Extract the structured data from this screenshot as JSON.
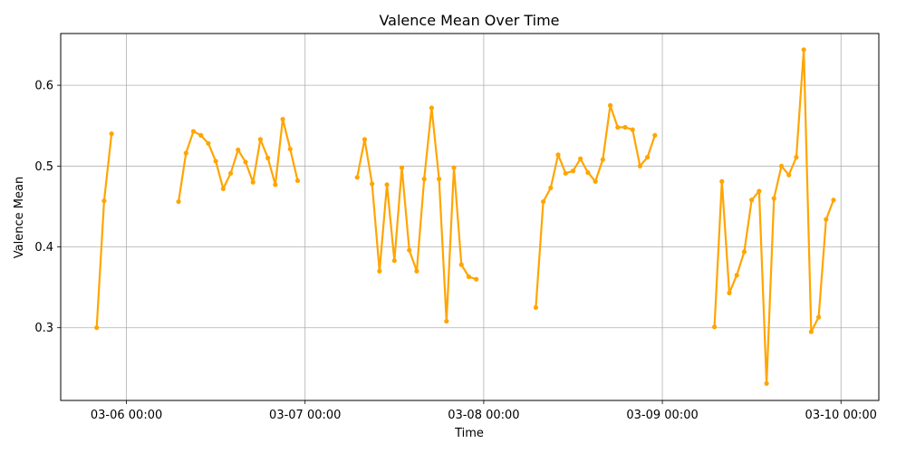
{
  "chart_data": {
    "type": "line",
    "title": "Valence Mean Over Time",
    "xlabel": "Time",
    "ylabel": "Valence Mean",
    "x_ticks": [
      "03-06 00:00",
      "03-07 00:00",
      "03-08 00:00",
      "03-09 00:00",
      "03-10 00:00"
    ],
    "y_ticks": [
      "0.3",
      "0.4",
      "0.5",
      "0.6"
    ],
    "ylim": [
      0.21,
      0.664
    ],
    "xlim": [
      "03-05 15:10",
      "03-10 05:05"
    ],
    "grid": true,
    "line_color": "#FFA500",
    "segments": [
      [
        {
          "t": "03-05 20:00",
          "v": 0.3
        },
        {
          "t": "03-05 21:00",
          "v": 0.457
        },
        {
          "t": "03-05 22:00",
          "v": 0.54
        }
      ],
      [
        {
          "t": "03-06 07:00",
          "v": 0.456
        },
        {
          "t": "03-06 08:00",
          "v": 0.516
        },
        {
          "t": "03-06 09:00",
          "v": 0.543
        },
        {
          "t": "03-06 10:00",
          "v": 0.538
        },
        {
          "t": "03-06 11:00",
          "v": 0.528
        },
        {
          "t": "03-06 12:00",
          "v": 0.506
        },
        {
          "t": "03-06 13:00",
          "v": 0.472
        },
        {
          "t": "03-06 14:00",
          "v": 0.491
        },
        {
          "t": "03-06 15:00",
          "v": 0.52
        },
        {
          "t": "03-06 16:00",
          "v": 0.505
        },
        {
          "t": "03-06 17:00",
          "v": 0.48
        },
        {
          "t": "03-06 18:00",
          "v": 0.533
        },
        {
          "t": "03-06 19:00",
          "v": 0.51
        },
        {
          "t": "03-06 20:00",
          "v": 0.477
        },
        {
          "t": "03-06 21:00",
          "v": 0.558
        },
        {
          "t": "03-06 22:00",
          "v": 0.521
        },
        {
          "t": "03-06 23:00",
          "v": 0.482
        }
      ],
      [
        {
          "t": "03-07 07:00",
          "v": 0.486
        },
        {
          "t": "03-07 08:00",
          "v": 0.533
        },
        {
          "t": "03-07 09:00",
          "v": 0.478
        },
        {
          "t": "03-07 10:00",
          "v": 0.37
        },
        {
          "t": "03-07 11:00",
          "v": 0.477
        },
        {
          "t": "03-07 12:00",
          "v": 0.383
        },
        {
          "t": "03-07 13:00",
          "v": 0.498
        },
        {
          "t": "03-07 14:00",
          "v": 0.396
        },
        {
          "t": "03-07 15:00",
          "v": 0.37
        },
        {
          "t": "03-07 16:00",
          "v": 0.484
        },
        {
          "t": "03-07 17:00",
          "v": 0.572
        },
        {
          "t": "03-07 18:00",
          "v": 0.484
        },
        {
          "t": "03-07 19:00",
          "v": 0.308
        },
        {
          "t": "03-07 20:00",
          "v": 0.498
        },
        {
          "t": "03-07 21:00",
          "v": 0.378
        },
        {
          "t": "03-07 22:00",
          "v": 0.363
        },
        {
          "t": "03-07 23:00",
          "v": 0.36
        }
      ],
      [
        {
          "t": "03-08 07:00",
          "v": 0.325
        },
        {
          "t": "03-08 08:00",
          "v": 0.456
        },
        {
          "t": "03-08 09:00",
          "v": 0.473
        },
        {
          "t": "03-08 10:00",
          "v": 0.514
        },
        {
          "t": "03-08 11:00",
          "v": 0.491
        },
        {
          "t": "03-08 12:00",
          "v": 0.494
        },
        {
          "t": "03-08 13:00",
          "v": 0.509
        },
        {
          "t": "03-08 14:00",
          "v": 0.492
        },
        {
          "t": "03-08 15:00",
          "v": 0.481
        },
        {
          "t": "03-08 16:00",
          "v": 0.508
        },
        {
          "t": "03-08 17:00",
          "v": 0.575
        },
        {
          "t": "03-08 18:00",
          "v": 0.548
        },
        {
          "t": "03-08 19:00",
          "v": 0.548
        },
        {
          "t": "03-08 20:00",
          "v": 0.545
        },
        {
          "t": "03-08 21:00",
          "v": 0.5
        },
        {
          "t": "03-08 22:00",
          "v": 0.511
        },
        {
          "t": "03-08 23:00",
          "v": 0.538
        }
      ],
      [
        {
          "t": "03-09 07:00",
          "v": 0.301
        },
        {
          "t": "03-09 08:00",
          "v": 0.481
        },
        {
          "t": "03-09 09:00",
          "v": 0.343
        },
        {
          "t": "03-09 10:00",
          "v": 0.365
        },
        {
          "t": "03-09 11:00",
          "v": 0.394
        },
        {
          "t": "03-09 12:00",
          "v": 0.458
        },
        {
          "t": "03-09 13:00",
          "v": 0.469
        },
        {
          "t": "03-09 14:00",
          "v": 0.231
        },
        {
          "t": "03-09 15:00",
          "v": 0.46
        },
        {
          "t": "03-09 16:00",
          "v": 0.5
        },
        {
          "t": "03-09 17:00",
          "v": 0.489
        },
        {
          "t": "03-09 18:00",
          "v": 0.511
        },
        {
          "t": "03-09 19:00",
          "v": 0.644
        },
        {
          "t": "03-09 20:00",
          "v": 0.295
        },
        {
          "t": "03-09 21:00",
          "v": 0.313
        },
        {
          "t": "03-09 22:00",
          "v": 0.434
        },
        {
          "t": "03-09 23:00",
          "v": 0.458
        }
      ]
    ]
  }
}
